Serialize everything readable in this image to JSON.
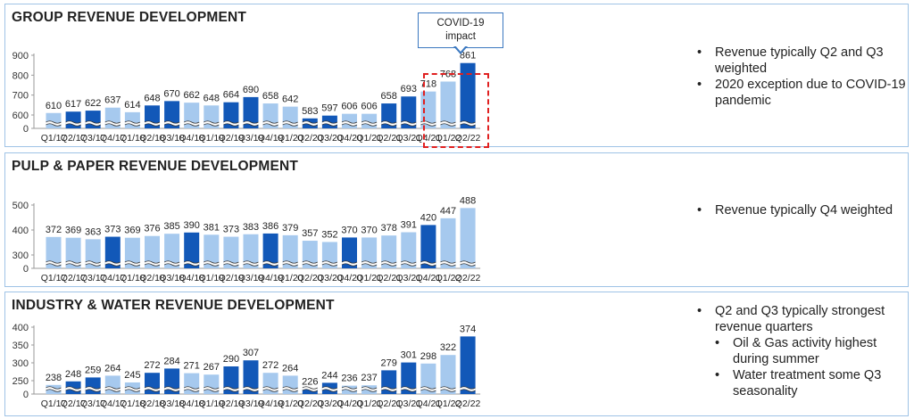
{
  "colors": {
    "dark": "#1258b8",
    "light": "#a6c9ee",
    "border": "#9fc3e6",
    "callout": "#3b78c0",
    "highlight": "#e02020"
  },
  "annotation": {
    "line1": "COVID-19",
    "line2": "impact"
  },
  "bullets": [
    {
      "items": [
        {
          "text": "Revenue typically Q2 and Q3 weighted",
          "level": 0
        },
        {
          "text": "2020 exception due to COVID-19 pandemic",
          "level": 0
        }
      ]
    },
    {
      "items": [
        {
          "text": "Revenue typically Q4 weighted",
          "level": 0
        }
      ]
    },
    {
      "items": [
        {
          "text": "Q2 and Q3 typically strongest revenue quarters",
          "level": 0
        },
        {
          "text": "Oil & Gas activity highest during summer",
          "level": 1
        },
        {
          "text": "Water treatment some Q3 seasonality",
          "level": 1
        }
      ]
    }
  ],
  "chart_data": [
    {
      "type": "bar",
      "title": "GROUP REVENUE DEVELOPMENT",
      "categories": [
        "Q1/17",
        "Q2/17",
        "Q3/17",
        "Q4/17",
        "Q1/18",
        "Q2/18",
        "Q3/18",
        "Q4/18",
        "Q1/19",
        "Q2/19",
        "Q3/19",
        "Q4/19",
        "Q1/20",
        "Q2/20",
        "Q3/20",
        "Q4/20",
        "Q1/21",
        "Q2/21",
        "Q3/21",
        "Q4/21",
        "Q1/22",
        "Q2/22"
      ],
      "values": [
        610,
        617,
        622,
        637,
        614,
        648,
        670,
        662,
        648,
        664,
        690,
        658,
        642,
        583,
        597,
        606,
        606,
        658,
        693,
        718,
        768,
        861
      ],
      "highlight": [
        false,
        true,
        true,
        false,
        false,
        true,
        true,
        false,
        false,
        true,
        true,
        false,
        false,
        true,
        true,
        false,
        false,
        true,
        true,
        false,
        false,
        true
      ],
      "yticks": [
        0,
        600,
        700,
        800,
        900
      ],
      "ylim": [
        0,
        900
      ],
      "broken_axis": true
    },
    {
      "type": "bar",
      "title": "PULP & PAPER REVENUE DEVELOPMENT",
      "categories": [
        "Q1/17",
        "Q2/17",
        "Q3/17",
        "Q4/17",
        "Q1/18",
        "Q2/18",
        "Q3/18",
        "Q4/18",
        "Q1/19",
        "Q2/19",
        "Q3/19",
        "Q4/19",
        "Q1/20",
        "Q2/20",
        "Q3/20",
        "Q4/20",
        "Q1/21",
        "Q2/21",
        "Q3/21",
        "Q4/21",
        "Q1/22",
        "Q2/22"
      ],
      "values": [
        372,
        369,
        363,
        373,
        369,
        376,
        385,
        390,
        381,
        373,
        383,
        386,
        379,
        357,
        352,
        370,
        370,
        378,
        391,
        420,
        447,
        488
      ],
      "highlight": [
        false,
        false,
        false,
        true,
        false,
        false,
        false,
        true,
        false,
        false,
        false,
        true,
        false,
        false,
        false,
        true,
        false,
        false,
        false,
        true,
        false,
        false
      ],
      "yticks": [
        0,
        300,
        400,
        500
      ],
      "ylim": [
        0,
        500
      ],
      "broken_axis": true
    },
    {
      "type": "bar",
      "title": "INDUSTRY & WATER REVENUE DEVELOPMENT",
      "categories": [
        "Q1/17",
        "Q2/17",
        "Q3/17",
        "Q4/17",
        "Q1/18",
        "Q2/18",
        "Q3/18",
        "Q4/18",
        "Q1/19",
        "Q2/19",
        "Q3/19",
        "Q4/19",
        "Q1/20",
        "Q2/20",
        "Q3/20",
        "Q4/20",
        "Q1/21",
        "Q2/21",
        "Q3/21",
        "Q4/21",
        "Q1/22",
        "Q2/22"
      ],
      "values": [
        238,
        248,
        259,
        264,
        245,
        272,
        284,
        271,
        267,
        290,
        307,
        272,
        264,
        226,
        244,
        236,
        237,
        279,
        301,
        298,
        322,
        374
      ],
      "highlight": [
        false,
        true,
        true,
        false,
        false,
        true,
        true,
        false,
        false,
        true,
        true,
        false,
        false,
        true,
        true,
        false,
        false,
        true,
        true,
        false,
        false,
        true
      ],
      "yticks": [
        0,
        250,
        300,
        350,
        400
      ],
      "ylim": [
        0,
        400
      ],
      "broken_axis": true
    }
  ]
}
